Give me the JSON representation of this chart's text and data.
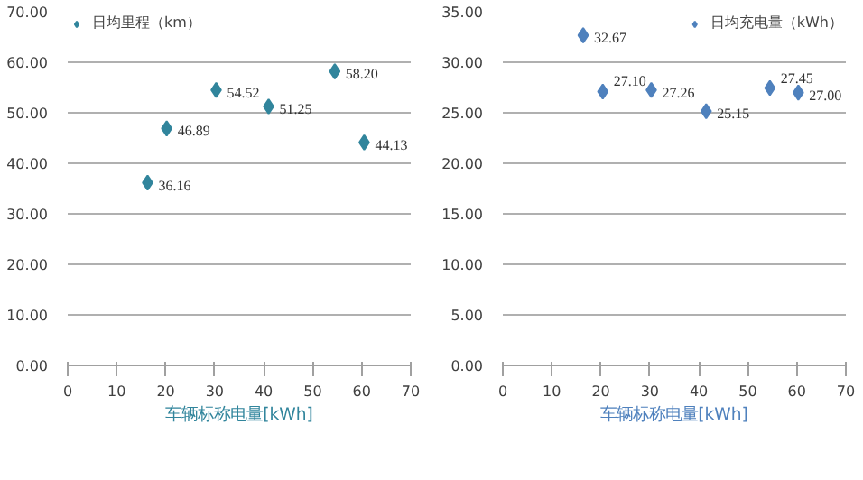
{
  "chart_data": [
    {
      "type": "scatter",
      "xlabel": "车辆标称电量[kWh]",
      "x": [
        16.3,
        20.2,
        30.3,
        41.0,
        54.5,
        60.5
      ],
      "series": [
        {
          "name": "日均里程（km）",
          "color": "#31859c",
          "values": [
            36.16,
            46.89,
            54.52,
            51.25,
            58.2,
            44.13
          ]
        }
      ],
      "xlim": [
        0,
        70
      ],
      "xticks": [
        0,
        10,
        20,
        30,
        40,
        50,
        60,
        70
      ],
      "ylim": [
        0,
        70
      ],
      "yticks": [
        {
          "value": 0,
          "label": "0.00"
        },
        {
          "value": 10,
          "label": "10.00"
        },
        {
          "value": 20,
          "label": "20.00"
        },
        {
          "value": 30,
          "label": "30.00"
        },
        {
          "value": 40,
          "label": "40.00"
        },
        {
          "value": 50,
          "label": "50.00"
        },
        {
          "value": 60,
          "label": "60.00"
        },
        {
          "value": 70,
          "label": "70.00"
        }
      ],
      "value_labels": [
        "36.16",
        "46.89",
        "54.52",
        "51.25",
        "58.20",
        "44.13"
      ],
      "grid": "y",
      "legend": "top left",
      "marker": "diamond"
    },
    {
      "type": "scatter",
      "xlabel": "车辆标称电量[kWh]",
      "x": [
        16.4,
        20.4,
        30.3,
        41.5,
        54.5,
        60.3
      ],
      "series": [
        {
          "name": "日均充电量（kWh）",
          "color": "#4f81bd",
          "values": [
            32.67,
            27.1,
            27.26,
            25.15,
            27.45,
            27.0
          ]
        }
      ],
      "xlim": [
        0,
        70
      ],
      "xticks": [
        0,
        10,
        20,
        30,
        40,
        50,
        60,
        70
      ],
      "ylim": [
        0,
        35
      ],
      "yticks": [
        {
          "value": 0,
          "label": "0.00"
        },
        {
          "value": 5,
          "label": "5.00"
        },
        {
          "value": 10,
          "label": "10.00"
        },
        {
          "value": 15,
          "label": "15.00"
        },
        {
          "value": 20,
          "label": "20.00"
        },
        {
          "value": 25,
          "label": "25.00"
        },
        {
          "value": 30,
          "label": "30.00"
        },
        {
          "value": 35,
          "label": "35.00"
        }
      ],
      "value_labels": [
        "32.67",
        "27.10",
        "27.26",
        "25.15",
        "27.45",
        "27.00"
      ],
      "grid": "y",
      "legend": "top right",
      "marker": "diamond"
    }
  ]
}
